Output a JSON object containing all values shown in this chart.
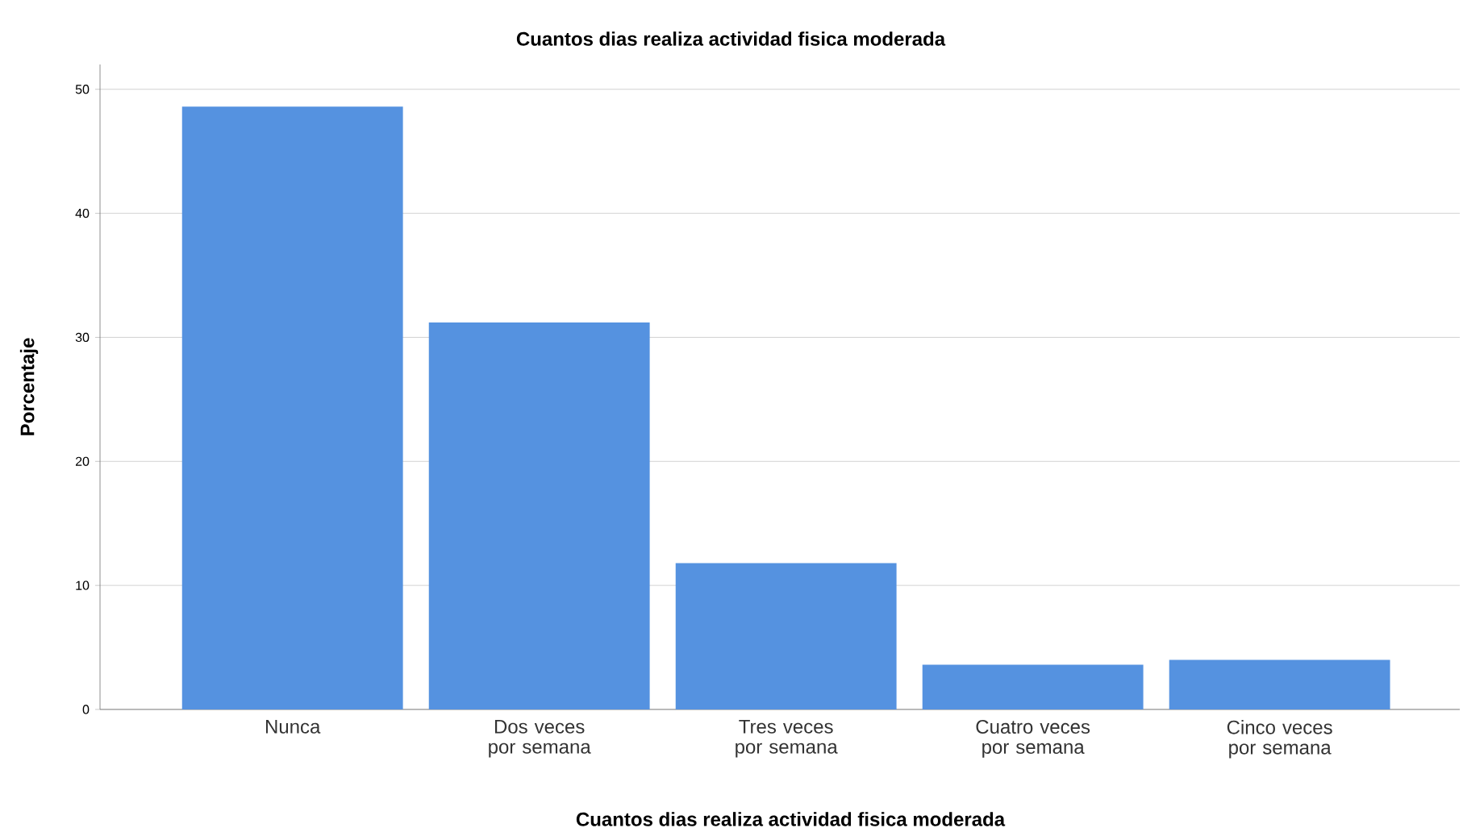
{
  "chart_data": {
    "type": "bar",
    "title": "Cuantos dias realiza actividad fisica moderada",
    "xlabel": "Cuantos dias realiza actividad fisica moderada",
    "ylabel": "Porcentaje",
    "categories": [
      "Nunca",
      "Dos veces por semana",
      "Tres veces por semana",
      "Cuatro veces por semana",
      "Cinco veces por semana"
    ],
    "values": [
      48.6,
      31.2,
      11.8,
      3.6,
      4.0
    ],
    "color": "#5592e0",
    "ylim": [
      0,
      52
    ],
    "yticks": [
      0,
      10,
      20,
      30,
      40,
      50
    ],
    "grid": "y"
  }
}
